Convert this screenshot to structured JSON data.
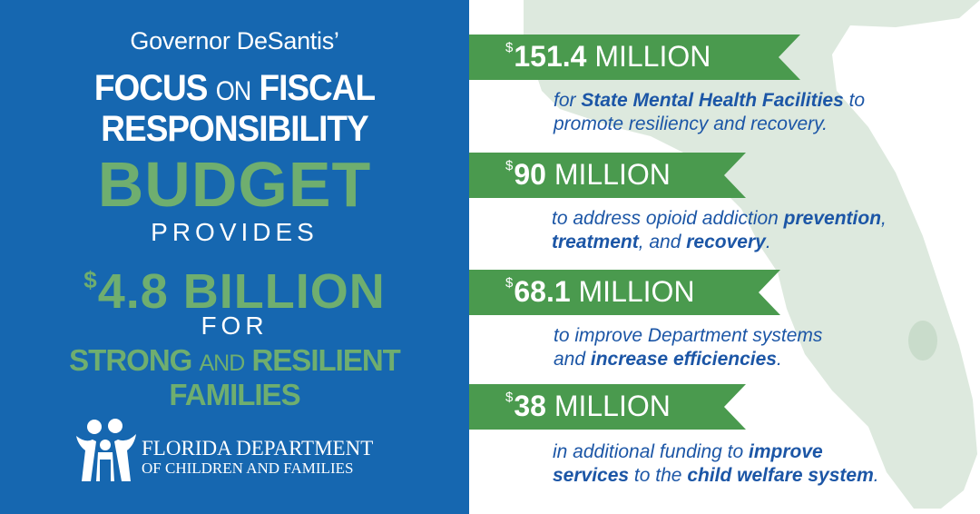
{
  "header": {
    "line1": "Governor DeSantis’",
    "line2_a": "FOCUS",
    "line2_b": "ON",
    "line2_c": "FISCAL",
    "line3": "RESPONSIBILITY",
    "line4": "BUDGET",
    "line5": "PROVIDES",
    "amount_symbol": "$",
    "amount": "4.8 BILLION",
    "line7": "FOR",
    "line8_a": "STRONG",
    "line8_b": "AND",
    "line8_c": "RESILIENT",
    "line9": "FAMILIES"
  },
  "logo": {
    "line1": "FLORIDA DEPARTMENT",
    "line2": "OF CHILDREN AND FAMILIES",
    "icon": "family-icon"
  },
  "items": [
    {
      "symbol": "$",
      "amount": "151.4",
      "unit": "MILLION",
      "desc_l1_a": "for ",
      "desc_l1_b": "State Mental Health Facilities",
      "desc_l1_c": " to",
      "desc_l2": "promote resiliency and recovery."
    },
    {
      "symbol": "$",
      "amount": "90",
      "unit": "MILLION",
      "desc_l1_a": "to address opioid addiction ",
      "desc_l1_b": "prevention",
      "desc_l1_c": ",",
      "desc_l2_a": "treatment",
      "desc_l2_b": ", and ",
      "desc_l2_c": "recovery",
      "desc_l2_d": "."
    },
    {
      "symbol": "$",
      "amount": "68.1",
      "unit": "MILLION",
      "desc_l1": "to improve Department systems",
      "desc_l2_a": "and ",
      "desc_l2_b": "increase efficiencies",
      "desc_l2_c": "."
    },
    {
      "symbol": "$",
      "amount": "38",
      "unit": "MILLION",
      "desc_l1_a": "in additional funding to ",
      "desc_l1_b": "improve",
      "desc_l2_a": "services",
      "desc_l2_b": " to the ",
      "desc_l2_c": "child welfare system",
      "desc_l2_d": "."
    }
  ],
  "colors": {
    "left_bg": "#1667b0",
    "accent_green": "#6fae6f",
    "banner_green": "#4a9a4e",
    "desc_blue": "#1c56a6",
    "map_fill": "#dde9de"
  },
  "background_image": "florida-map"
}
